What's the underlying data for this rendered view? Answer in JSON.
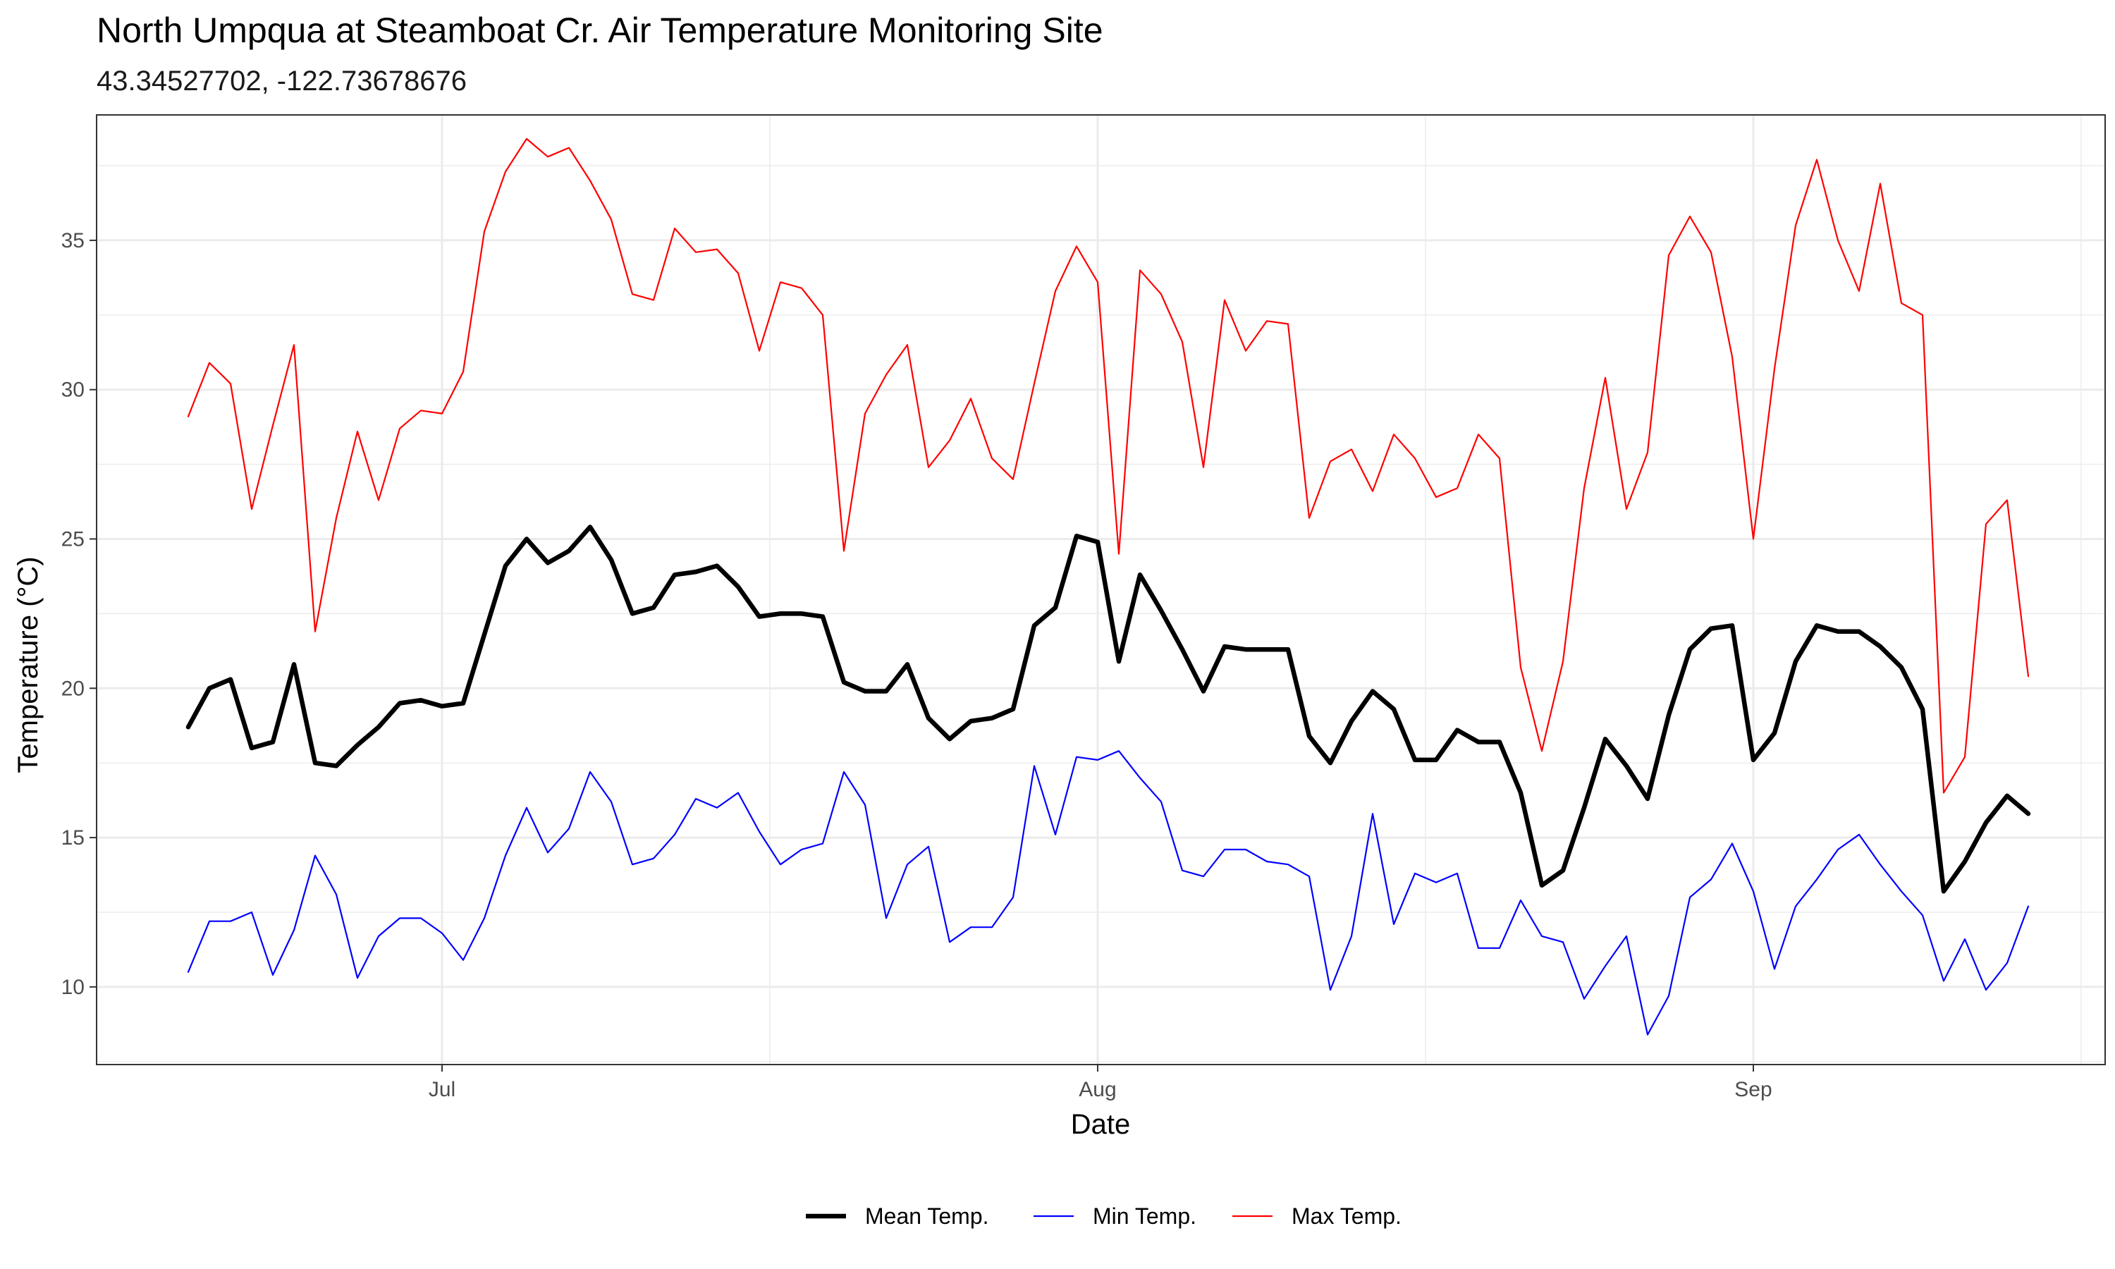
{
  "chart_data": {
    "type": "line",
    "title": "North Umpqua at Steamboat Cr. Air Temperature Monitoring Site",
    "subtitle": "43.34527702, -122.73678676",
    "xlabel": "Date",
    "ylabel": "Temperature (°C)",
    "x_start": "2023-06-19",
    "x_tick_labels": [
      {
        "date": "2023-07-01",
        "label": "Jul"
      },
      {
        "date": "2023-08-01",
        "label": "Aug"
      },
      {
        "date": "2023-09-01",
        "label": "Sep"
      }
    ],
    "y_ticks": [
      10,
      15,
      20,
      25,
      30,
      35
    ],
    "ylim": [
      7.4,
      39.2
    ],
    "grid": true,
    "legend_position": "bottom",
    "series": [
      {
        "name": "Mean Temp.",
        "color": "#000000",
        "values": [
          18.7,
          20.0,
          20.3,
          18.0,
          18.2,
          20.8,
          17.5,
          17.4,
          18.1,
          18.7,
          19.5,
          19.6,
          19.4,
          19.5,
          21.8,
          24.1,
          25.0,
          24.2,
          24.6,
          25.4,
          24.3,
          22.5,
          22.7,
          23.8,
          23.9,
          24.1,
          23.4,
          22.4,
          22.5,
          22.5,
          22.4,
          20.2,
          19.9,
          19.9,
          20.8,
          19.0,
          18.3,
          18.9,
          19.0,
          19.3,
          22.1,
          22.7,
          25.1,
          24.9,
          20.9,
          23.8,
          22.6,
          21.3,
          19.9,
          21.4,
          21.3,
          21.3,
          21.3,
          18.4,
          17.5,
          18.9,
          19.9,
          19.3,
          17.6,
          17.6,
          18.6,
          18.2,
          18.2,
          16.5,
          13.4,
          13.9,
          16.0,
          18.3,
          17.4,
          16.3,
          19.1,
          21.3,
          22.0,
          22.1,
          17.6,
          18.5,
          20.9,
          22.1,
          21.9,
          21.9,
          21.4,
          20.7,
          19.3,
          13.2,
          14.2,
          15.5,
          16.4,
          15.8
        ]
      },
      {
        "name": "Min Temp.",
        "color": "#0000ff",
        "values": [
          10.5,
          12.2,
          12.2,
          12.5,
          10.4,
          11.9,
          14.4,
          13.1,
          10.3,
          11.7,
          12.3,
          12.3,
          11.8,
          10.9,
          12.3,
          14.4,
          16.0,
          14.5,
          15.3,
          17.2,
          16.2,
          14.1,
          14.3,
          15.1,
          16.3,
          16.0,
          16.5,
          15.2,
          14.1,
          14.6,
          14.8,
          17.2,
          16.1,
          12.3,
          14.1,
          14.7,
          11.5,
          12.0,
          12.0,
          13.0,
          17.4,
          15.1,
          17.7,
          17.6,
          17.9,
          17.0,
          16.2,
          13.9,
          13.7,
          14.6,
          14.6,
          14.2,
          14.1,
          13.7,
          9.9,
          11.7,
          15.8,
          12.1,
          13.8,
          13.5,
          13.8,
          11.3,
          11.3,
          12.9,
          11.7,
          11.5,
          9.6,
          10.7,
          11.7,
          8.4,
          9.7,
          13.0,
          13.6,
          14.8,
          13.2,
          10.6,
          12.7,
          13.6,
          14.6,
          15.1,
          14.1,
          13.2,
          12.4,
          10.2,
          11.6,
          9.9,
          10.8,
          12.7
        ]
      },
      {
        "name": "Max Temp.",
        "color": "#ff0000",
        "values": [
          29.1,
          30.9,
          30.2,
          26.0,
          28.8,
          31.5,
          21.9,
          25.7,
          28.6,
          26.3,
          28.7,
          29.3,
          29.2,
          30.6,
          35.3,
          37.3,
          38.4,
          37.8,
          38.1,
          37.0,
          35.7,
          33.2,
          33.0,
          35.4,
          34.6,
          34.7,
          33.9,
          31.3,
          33.6,
          33.4,
          32.5,
          24.6,
          29.2,
          30.5,
          31.5,
          27.4,
          28.3,
          29.7,
          27.7,
          27.0,
          30.2,
          33.3,
          34.8,
          33.6,
          24.5,
          34.0,
          33.2,
          31.6,
          27.4,
          33.0,
          31.3,
          32.3,
          32.2,
          25.7,
          27.6,
          28.0,
          26.6,
          28.5,
          27.7,
          26.4,
          26.7,
          28.5,
          27.7,
          20.7,
          17.9,
          20.9,
          26.7,
          30.4,
          26.0,
          27.9,
          34.5,
          35.8,
          34.6,
          31.1,
          25.0,
          30.7,
          35.5,
          37.7,
          35.0,
          33.3,
          36.9,
          32.9,
          32.5,
          16.5,
          17.7,
          25.5,
          26.3,
          20.4
        ]
      }
    ]
  }
}
